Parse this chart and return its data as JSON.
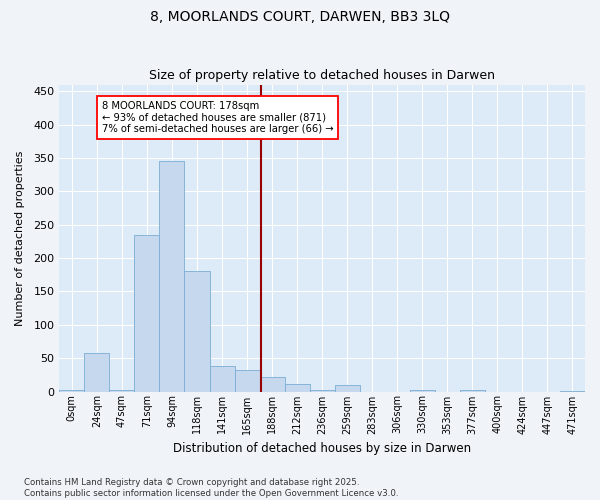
{
  "title": "8, MOORLANDS COURT, DARWEN, BB3 3LQ",
  "subtitle": "Size of property relative to detached houses in Darwen",
  "xlabel": "Distribution of detached houses by size in Darwen",
  "ylabel": "Number of detached properties",
  "bar_color": "#c5d8ee",
  "bar_edge_color": "#7aadd4",
  "background_color": "#ddeaf7",
  "grid_color": "#ffffff",
  "fig_bg_color": "#f0f4f8",
  "tick_labels": [
    "0sqm",
    "24sqm",
    "47sqm",
    "71sqm",
    "94sqm",
    "118sqm",
    "141sqm",
    "165sqm",
    "188sqm",
    "212sqm",
    "236sqm",
    "259sqm",
    "283sqm",
    "306sqm",
    "330sqm",
    "353sqm",
    "377sqm",
    "400sqm",
    "424sqm",
    "447sqm",
    "471sqm"
  ],
  "values": [
    3,
    57,
    2,
    235,
    345,
    180,
    38,
    32,
    22,
    12,
    3,
    10,
    0,
    0,
    3,
    0,
    3,
    0,
    0,
    0,
    1
  ],
  "vline_x": 7.565,
  "annotation_title": "8 MOORLANDS COURT: 178sqm",
  "annotation_line2": "← 93% of detached houses are smaller (871)",
  "annotation_line3": "7% of semi-detached houses are larger (66) →",
  "ylim": [
    0,
    460
  ],
  "yticks": [
    0,
    50,
    100,
    150,
    200,
    250,
    300,
    350,
    400,
    450
  ],
  "footer_line1": "Contains HM Land Registry data © Crown copyright and database right 2025.",
  "footer_line2": "Contains public sector information licensed under the Open Government Licence v3.0."
}
